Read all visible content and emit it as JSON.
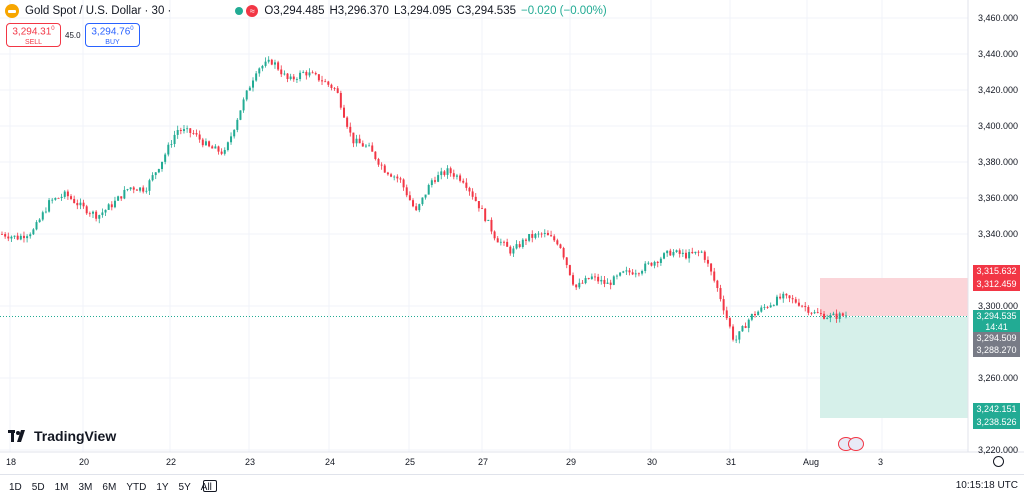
{
  "legend": {
    "symbol_title": "Gold Spot / U.S. Dollar · 30 ·",
    "open": "O3,294.485",
    "high": "H3,296.370",
    "low": "L3,294.095",
    "close": "C3,294.535",
    "change": "−0.020 (−0.00%)",
    "status_icon": "market-open-dot",
    "indicator_icon": "wave-icon"
  },
  "trade": {
    "sell_price": "3,294.31",
    "sell_sup": "0",
    "sell_label": "SELL",
    "spread": "45.0",
    "buy_price": "3,294.76",
    "buy_sup": "0",
    "buy_label": "BUY"
  },
  "price_axis": {
    "labels": [
      "3,460.000",
      "3,440.000",
      "3,420.000",
      "3,400.000",
      "3,380.000",
      "3,360.000",
      "3,340.000",
      "3,300.000",
      "3,260.000",
      "3,220.000"
    ]
  },
  "price_tags": {
    "tp_top": "3,315.632",
    "tp_bottom": "3,312.459",
    "current": "3,294.535",
    "countdown": "14:41",
    "entry_top": "3,294.509",
    "entry_bottom": "3,288.270",
    "sl_top": "3,242.151",
    "sl_bottom": "3,238.526"
  },
  "time_axis": {
    "labels": [
      "18",
      "20",
      "22",
      "23",
      "24",
      "25",
      "27",
      "29",
      "30",
      "31",
      "Aug",
      "3"
    ]
  },
  "branding": {
    "logo_text": "TradingView"
  },
  "toolbar": {
    "timeframes": [
      "1D",
      "5D",
      "1M",
      "3M",
      "6M",
      "YTD",
      "1Y",
      "5Y",
      "All"
    ],
    "calendar_icon": "calendar-range-icon",
    "clock": "10:15:18 UTC"
  },
  "colors": {
    "up": "#22ab94",
    "down": "#f23645",
    "profit_zone": "#d6f0ea",
    "loss_zone": "#fbd5d9",
    "grid": "#f0f3fa"
  },
  "chart_data": {
    "type": "candlestick",
    "symbol": "Gold Spot / U.S. Dollar",
    "interval": "30",
    "ylim": [
      3220,
      3460
    ],
    "x": [
      "18",
      "20",
      "22",
      "23",
      "24",
      "25",
      "27",
      "29",
      "30",
      "31",
      "Aug",
      "3"
    ],
    "close_path": [
      3340,
      3338,
      3342,
      3358,
      3362,
      3355,
      3350,
      3357,
      3366,
      3365,
      3380,
      3398,
      3396,
      3388,
      3385,
      3410,
      3432,
      3436,
      3425,
      3430,
      3426,
      3420,
      3392,
      3388,
      3376,
      3370,
      3352,
      3370,
      3375,
      3370,
      3355,
      3338,
      3330,
      3338,
      3340,
      3335,
      3310,
      3316,
      3312,
      3318,
      3320,
      3325,
      3330,
      3328,
      3330,
      3308,
      3280,
      3294,
      3300,
      3305,
      3302,
      3296,
      3294,
      3295
    ],
    "position": {
      "take_profit_zone_top": 3315.632,
      "entry": 3294.509,
      "stop_zone_bottom": 3238.526
    }
  }
}
